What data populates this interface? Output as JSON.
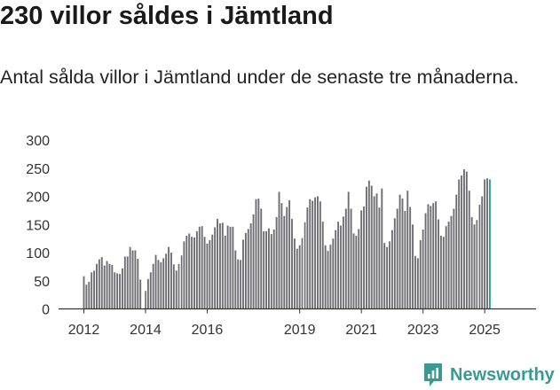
{
  "header": {
    "title": "230 villor såldes i Jämtland",
    "subtitle": "Antal sålda villor i Jämtland under de senaste tre månaderna."
  },
  "brand": {
    "name": "Newsworthy",
    "icon": "newsworthy-logo-icon",
    "color": "#3a9a92"
  },
  "colors": {
    "bar": "#6e6d73",
    "highlight": "#2a9d96",
    "axis": "#333333",
    "grid": "#dddddd"
  },
  "chart_data": {
    "type": "bar",
    "title": "230 villor såldes i Jämtland",
    "subtitle": "Antal sålda villor i Jämtland under de senaste tre månaderna.",
    "xlabel": "",
    "ylabel": "",
    "ylim": [
      0,
      300
    ],
    "yticks": [
      0,
      50,
      100,
      150,
      200,
      250,
      300
    ],
    "xtick_labels": [
      {
        "label": "2012",
        "index": 0
      },
      {
        "label": "2014",
        "index": 24
      },
      {
        "label": "2016",
        "index": 48
      },
      {
        "label": "2019",
        "index": 84
      },
      {
        "label": "2021",
        "index": 108
      },
      {
        "label": "2023",
        "index": 132
      },
      {
        "label": "2025",
        "index": 156
      }
    ],
    "start_month": "2012-01",
    "end_month": "2025-07",
    "grid": false,
    "gaps_after_index": [
      23,
      37,
      85,
      153
    ],
    "annotation": {
      "text": "230",
      "index": 162
    },
    "values": [
      58,
      43,
      48,
      65,
      68,
      80,
      88,
      92,
      77,
      85,
      80,
      78,
      65,
      63,
      62,
      72,
      93,
      93,
      110,
      104,
      104,
      89,
      52,
      0,
      32,
      53,
      65,
      80,
      96,
      87,
      83,
      90,
      98,
      110,
      100,
      79,
      68,
      80,
      95,
      120,
      130,
      134,
      128,
      127,
      138,
      146,
      147,
      128,
      116,
      122,
      132,
      145,
      160,
      152,
      153,
      130,
      148,
      146,
      146,
      104,
      88,
      87,
      123,
      135,
      142,
      152,
      168,
      195,
      196,
      178,
      138,
      138,
      143,
      133,
      141,
      163,
      208,
      188,
      165,
      181,
      193,
      160,
      125,
      107,
      113,
      126,
      154,
      180,
      195,
      192,
      198,
      200,
      191,
      155,
      113,
      103,
      114,
      125,
      140,
      155,
      148,
      164,
      178,
      208,
      178,
      134,
      130,
      142,
      175,
      182,
      217,
      228,
      219,
      200,
      205,
      180,
      214,
      117,
      110,
      120,
      140,
      161,
      178,
      203,
      196,
      174,
      210,
      181,
      150,
      94,
      90,
      122,
      141,
      170,
      186,
      183,
      188,
      191,
      159,
      130,
      128,
      147,
      155,
      165,
      178,
      203,
      230,
      237,
      248,
      244,
      210,
      163,
      150,
      158,
      185,
      200,
      230,
      232,
      230
    ]
  }
}
